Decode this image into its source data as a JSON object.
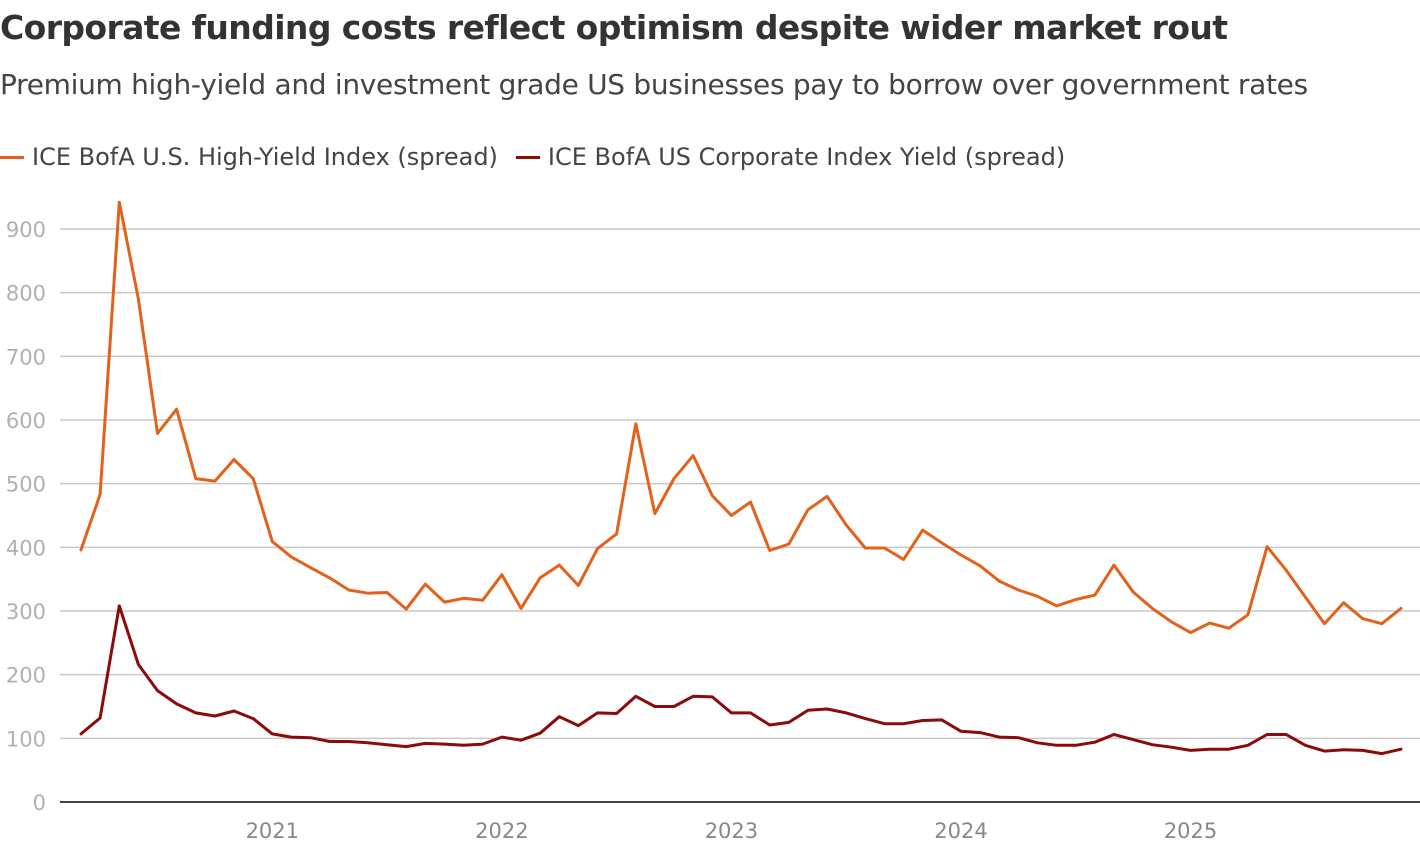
{
  "chart_data": {
    "type": "line",
    "title": "Corporate funding costs reflect optimism despite wider market rout",
    "subtitle": "Premium high-yield and investment grade US businesses pay to borrow over government rates",
    "xlabel": "",
    "ylabel": "",
    "ylim": [
      0,
      950
    ],
    "yticks": [
      0,
      100,
      200,
      300,
      400,
      500,
      600,
      700,
      800,
      900
    ],
    "xticks": [
      {
        "label": "2021",
        "date": "2021-01"
      },
      {
        "label": "2022",
        "date": "2022-01"
      },
      {
        "label": "2023",
        "date": "2023-01"
      },
      {
        "label": "2024",
        "date": "2024-01"
      },
      {
        "label": "2025",
        "date": "2025-01"
      }
    ],
    "x_start": "2020-03",
    "x_end": "2025-12",
    "grid": true,
    "legend_position": "top-left",
    "series": [
      {
        "name": "ICE BofA U.S. High-Yield Index (spread)",
        "color": "#e2621b",
        "values": [
          396,
          483,
          942,
          790,
          579,
          617,
          508,
          504,
          538,
          508,
          409,
          385,
          368,
          352,
          333,
          328,
          329,
          303,
          342,
          314,
          320,
          317,
          357,
          304,
          352,
          372,
          340,
          398,
          421,
          594,
          453,
          508,
          544,
          481,
          450,
          471,
          395,
          405,
          459,
          480,
          435,
          399,
          399,
          381,
          427,
          407,
          388,
          371,
          347,
          333,
          323,
          308,
          318,
          325,
          372,
          330,
          304,
          283,
          266,
          281,
          273,
          294,
          401,
          364,
          322,
          280,
          313,
          288,
          280,
          304
        ]
      },
      {
        "name": "ICE BofA US Corporate Index Yield (spread)",
        "color": "#8b0a0a",
        "values": [
          107,
          132,
          308,
          216,
          175,
          154,
          140,
          135,
          143,
          131,
          107,
          102,
          101,
          95,
          95,
          93,
          90,
          87,
          92,
          91,
          89,
          91,
          102,
          97,
          108,
          134,
          120,
          140,
          139,
          166,
          150,
          150,
          166,
          165,
          140,
          140,
          121,
          125,
          144,
          146,
          140,
          131,
          123,
          123,
          128,
          129,
          111,
          109,
          102,
          101,
          93,
          89,
          89,
          94,
          106,
          98,
          90,
          86,
          81,
          83,
          83,
          89,
          106,
          106,
          89,
          80,
          82,
          81,
          76,
          83
        ]
      }
    ]
  }
}
